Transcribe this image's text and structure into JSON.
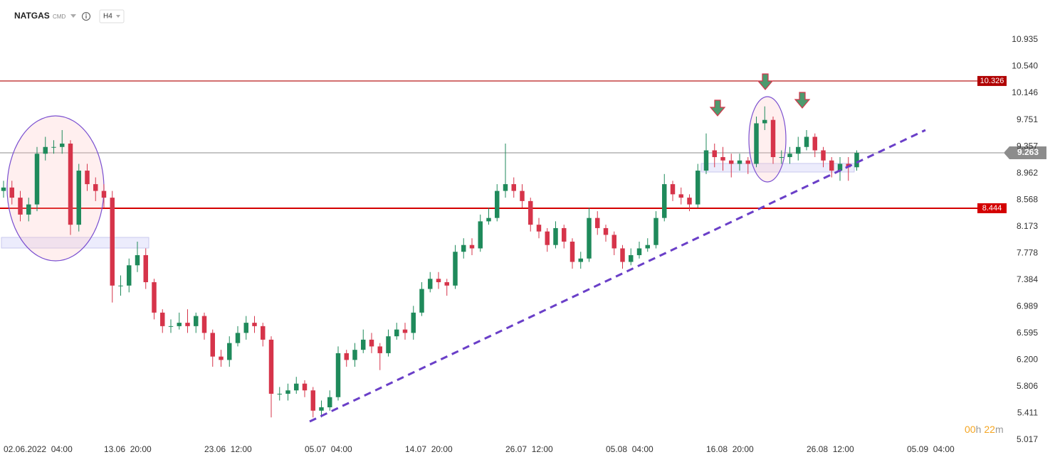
{
  "chart_data": {
    "type": "candlestick",
    "title": "NATGAS",
    "subtitle": "CMD",
    "interval": "H4",
    "countdown": [
      "00",
      "h",
      "22",
      "m"
    ],
    "up_color": "#1f8a5b",
    "down_color": "#d6344a",
    "open": [
      8.7,
      8.75,
      8.6,
      8.35,
      8.5,
      9.25,
      9.35,
      9.35,
      9.4,
      8.2,
      9.0,
      8.8,
      8.7,
      8.6,
      7.3,
      7.3,
      7.6,
      7.75,
      7.35,
      6.9,
      6.7,
      6.7,
      6.75,
      6.7,
      6.85,
      6.6,
      6.25,
      6.2,
      6.45,
      6.6,
      6.75,
      6.7,
      6.5,
      5.7,
      5.7,
      5.75,
      5.85,
      5.75,
      5.45,
      5.5,
      5.65,
      6.3,
      6.2,
      6.35,
      6.5,
      6.4,
      6.3,
      6.55,
      6.65,
      6.6,
      6.9,
      7.25,
      7.4,
      7.35,
      7.3,
      7.8,
      7.9,
      7.85,
      8.25,
      8.3,
      8.7,
      8.8,
      8.7,
      8.55,
      8.2,
      8.1,
      7.9,
      8.15,
      7.95,
      7.65,
      7.7,
      8.3,
      8.15,
      8.05,
      7.85,
      7.65,
      7.75,
      7.85,
      7.9,
      8.3,
      8.8,
      8.65,
      8.6,
      8.5,
      9.0,
      9.3,
      9.2,
      9.15,
      9.1,
      9.15,
      9.1,
      9.7,
      9.75,
      9.2,
      9.2,
      9.25,
      9.35,
      9.5,
      9.3,
      9.15,
      9.0,
      9.1,
      9.05
    ],
    "high": [
      8.85,
      8.85,
      8.7,
      8.6,
      9.35,
      9.5,
      9.45,
      9.6,
      9.45,
      9.1,
      9.1,
      8.9,
      8.8,
      8.7,
      7.45,
      7.7,
      7.95,
      7.85,
      7.4,
      6.95,
      6.8,
      6.9,
      6.95,
      6.9,
      6.9,
      6.65,
      6.35,
      6.55,
      6.7,
      6.85,
      6.85,
      6.75,
      6.55,
      5.8,
      5.85,
      5.95,
      5.9,
      5.8,
      5.6,
      5.75,
      6.4,
      6.35,
      6.45,
      6.65,
      6.6,
      6.45,
      6.65,
      6.75,
      6.75,
      7.0,
      7.35,
      7.5,
      7.5,
      7.4,
      7.9,
      8.0,
      8.0,
      8.35,
      8.45,
      8.8,
      9.4,
      8.9,
      8.8,
      8.6,
      8.3,
      8.15,
      8.25,
      8.2,
      8.0,
      7.8,
      8.45,
      8.4,
      8.2,
      8.1,
      7.9,
      7.85,
      7.95,
      8.0,
      8.4,
      8.95,
      8.85,
      8.75,
      8.65,
      9.1,
      9.55,
      9.4,
      9.35,
      9.25,
      9.25,
      9.2,
      9.8,
      9.95,
      9.8,
      9.3,
      9.35,
      9.5,
      9.6,
      9.55,
      9.35,
      9.2,
      9.2,
      9.2,
      9.3
    ],
    "low": [
      8.6,
      8.5,
      8.25,
      8.25,
      8.4,
      9.15,
      9.25,
      9.25,
      8.05,
      8.1,
      8.7,
      8.55,
      8.45,
      7.05,
      7.15,
      7.2,
      7.5,
      7.25,
      6.8,
      6.6,
      6.6,
      6.65,
      6.6,
      6.6,
      6.5,
      6.1,
      6.1,
      6.1,
      6.4,
      6.5,
      6.6,
      6.4,
      5.35,
      5.6,
      5.6,
      5.7,
      5.65,
      5.35,
      5.35,
      5.45,
      5.6,
      6.1,
      6.1,
      6.3,
      6.3,
      6.05,
      6.25,
      6.5,
      6.5,
      6.5,
      6.85,
      7.2,
      7.25,
      7.15,
      7.25,
      7.7,
      7.75,
      7.8,
      8.2,
      8.25,
      8.6,
      8.6,
      8.45,
      8.1,
      8.0,
      7.8,
      7.85,
      7.85,
      7.55,
      7.55,
      7.65,
      8.05,
      7.95,
      7.75,
      7.55,
      7.6,
      7.7,
      7.8,
      7.85,
      8.25,
      8.55,
      8.5,
      8.4,
      8.45,
      8.95,
      9.05,
      9.0,
      8.9,
      9.0,
      8.95,
      9.05,
      9.6,
      9.1,
      9.1,
      9.1,
      9.15,
      9.3,
      9.2,
      9.05,
      8.9,
      8.85,
      8.85,
      9.0
    ],
    "close": [
      8.75,
      8.6,
      8.35,
      8.5,
      9.25,
      9.35,
      9.35,
      9.4,
      8.2,
      9.0,
      8.8,
      8.7,
      8.6,
      7.3,
      7.3,
      7.6,
      7.75,
      7.35,
      6.9,
      6.7,
      6.7,
      6.75,
      6.7,
      6.85,
      6.6,
      6.25,
      6.2,
      6.45,
      6.6,
      6.75,
      6.7,
      6.5,
      5.7,
      5.7,
      5.75,
      5.85,
      5.75,
      5.45,
      5.5,
      5.65,
      6.3,
      6.2,
      6.35,
      6.5,
      6.4,
      6.3,
      6.55,
      6.65,
      6.6,
      6.9,
      7.25,
      7.4,
      7.35,
      7.3,
      7.8,
      7.9,
      7.85,
      8.25,
      8.3,
      8.7,
      8.8,
      8.7,
      8.55,
      8.2,
      8.1,
      7.9,
      8.15,
      7.95,
      7.65,
      7.7,
      8.3,
      8.15,
      8.05,
      7.85,
      7.65,
      7.75,
      7.85,
      7.9,
      8.3,
      8.8,
      8.65,
      8.6,
      8.5,
      9.0,
      9.3,
      9.2,
      9.15,
      9.1,
      9.15,
      9.1,
      9.7,
      9.75,
      9.2,
      9.2,
      9.25,
      9.35,
      9.5,
      9.3,
      9.15,
      9.0,
      9.1,
      9.05,
      9.263
    ],
    "xlim": [
      0,
      120
    ],
    "xticks": [
      {
        "value": 0,
        "label": "02.06.2022  04:00"
      },
      {
        "value": 12,
        "label": "13.06  20:00"
      },
      {
        "value": 24,
        "label": "23.06  12:00"
      },
      {
        "value": 36,
        "label": "05.07  04:00"
      },
      {
        "value": 48,
        "label": "14.07  20:00"
      },
      {
        "value": 60,
        "label": "26.07  12:00"
      },
      {
        "value": 72,
        "label": "05.08  04:00"
      },
      {
        "value": 84,
        "label": "16.08  20:00"
      },
      {
        "value": 96,
        "label": "26.08  12:00"
      },
      {
        "value": 108,
        "label": "05.09  04:00"
      }
    ],
    "ylim": [
      4.796,
      11.103
    ],
    "yticks": [
      5.017,
      5.411,
      5.806,
      {
        "value": 6.2,
        "label": "6.200"
      },
      6.595,
      6.989,
      7.384,
      7.778,
      8.173,
      8.568,
      8.962,
      9.357,
      9.751,
      10.146,
      {
        "value": 10.54,
        "label": "10.540"
      },
      10.935
    ],
    "grid": false,
    "levels": [
      {
        "value": 10.326,
        "color": "#b00000"
      },
      {
        "value": 8.444,
        "color": "#d40000"
      }
    ],
    "last_price": 9.263,
    "last_price_color": "#8c8c8c"
  }
}
